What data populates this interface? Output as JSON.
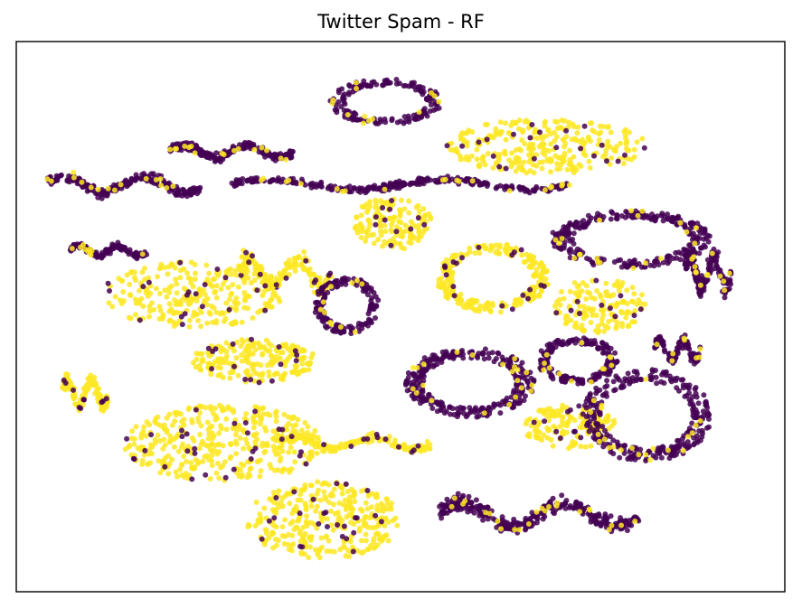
{
  "chart_data": {
    "type": "scatter",
    "title": "Twitter Spam - RF",
    "xlabel": "",
    "ylabel": "",
    "ticks_visible": false,
    "grid": false,
    "xlim": [
      0,
      100
    ],
    "ylim": [
      0,
      100
    ],
    "classes": [
      {
        "label": "",
        "color": "#440154"
      },
      {
        "label": "",
        "color": "#fde725"
      }
    ],
    "clusters": [
      {
        "class": 0,
        "cx": 48,
        "cy": 89,
        "rx": 7,
        "ry": 4,
        "shape": "arc",
        "n": 160
      },
      {
        "class": 0,
        "cx": 14,
        "cy": 74,
        "rx": 10,
        "ry": 4,
        "shape": "band",
        "n": 200
      },
      {
        "class": 0,
        "cx": 28,
        "cy": 80,
        "rx": 8,
        "ry": 3,
        "shape": "band",
        "n": 200
      },
      {
        "class": 0,
        "cx": 50,
        "cy": 74,
        "rx": 22,
        "ry": 2.5,
        "shape": "band",
        "n": 260
      },
      {
        "class": 0,
        "cx": 80,
        "cy": 64,
        "rx": 10,
        "ry": 5,
        "shape": "arc",
        "n": 260
      },
      {
        "class": 0,
        "cx": 90,
        "cy": 58,
        "rx": 3,
        "ry": 8,
        "shape": "band",
        "n": 160
      },
      {
        "class": 0,
        "cx": 12,
        "cy": 62,
        "rx": 5,
        "ry": 2.5,
        "shape": "band",
        "n": 120
      },
      {
        "class": 0,
        "cx": 43,
        "cy": 52,
        "rx": 4,
        "ry": 5,
        "shape": "arc",
        "n": 140
      },
      {
        "class": 0,
        "cx": 59,
        "cy": 38,
        "rx": 8,
        "ry": 6,
        "shape": "arc",
        "n": 280
      },
      {
        "class": 0,
        "cx": 73,
        "cy": 42,
        "rx": 5,
        "ry": 4,
        "shape": "arc",
        "n": 160
      },
      {
        "class": 0,
        "cx": 82,
        "cy": 32,
        "rx": 8,
        "ry": 8,
        "shape": "arc",
        "n": 280
      },
      {
        "class": 0,
        "cx": 68,
        "cy": 14,
        "rx": 13,
        "ry": 6,
        "shape": "band",
        "n": 300
      },
      {
        "class": 0,
        "cx": 86,
        "cy": 44,
        "rx": 3,
        "ry": 5,
        "shape": "band",
        "n": 100
      },
      {
        "class": 1,
        "cx": 69,
        "cy": 81,
        "rx": 13,
        "ry": 5,
        "shape": "blob",
        "n": 280
      },
      {
        "class": 1,
        "cx": 62,
        "cy": 57,
        "rx": 7,
        "ry": 6,
        "shape": "ring",
        "n": 240
      },
      {
        "class": 1,
        "cx": 23,
        "cy": 54,
        "rx": 12,
        "ry": 6,
        "shape": "blob",
        "n": 260
      },
      {
        "class": 1,
        "cx": 31,
        "cy": 42,
        "rx": 8,
        "ry": 4,
        "shape": "blob",
        "n": 200
      },
      {
        "class": 1,
        "cx": 9,
        "cy": 36,
        "rx": 3,
        "ry": 6,
        "shape": "band",
        "n": 120
      },
      {
        "class": 1,
        "cx": 27,
        "cy": 27,
        "rx": 13,
        "ry": 7,
        "shape": "blob",
        "n": 360
      },
      {
        "class": 1,
        "cx": 40,
        "cy": 13,
        "rx": 10,
        "ry": 7,
        "shape": "blob",
        "n": 320
      },
      {
        "class": 1,
        "cx": 35,
        "cy": 58,
        "rx": 6,
        "ry": 7,
        "shape": "band",
        "n": 160
      },
      {
        "class": 1,
        "cx": 49,
        "cy": 67,
        "rx": 5,
        "ry": 5,
        "shape": "blob",
        "n": 140
      },
      {
        "class": 1,
        "cx": 76,
        "cy": 52,
        "rx": 6,
        "ry": 5,
        "shape": "blob",
        "n": 140
      },
      {
        "class": 1,
        "cx": 72,
        "cy": 30,
        "rx": 6,
        "ry": 4,
        "shape": "blob",
        "n": 140
      },
      {
        "class": 1,
        "cx": 44,
        "cy": 27,
        "rx": 10,
        "ry": 3,
        "shape": "band",
        "n": 160
      }
    ]
  }
}
